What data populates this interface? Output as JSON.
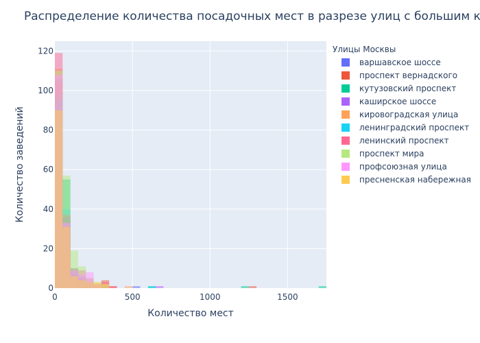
{
  "chart_data": {
    "type": "histogram",
    "title": "Распределение количества посадочных мест в разрезе улиц с большим ко",
    "xlabel": "Количество мест",
    "ylabel": "Количество заведений",
    "xlim": [
      0,
      1750
    ],
    "ylim": [
      0,
      125
    ],
    "x_ticks": [
      0,
      500,
      1000,
      1500
    ],
    "y_ticks": [
      0,
      20,
      40,
      60,
      80,
      100,
      120
    ],
    "bin_width": 50,
    "barmode": "overlay",
    "grid": true,
    "legend_title": "Улицы Москвы",
    "legend_position": "right",
    "series": [
      {
        "name": "варшавское шоссе",
        "color": "#636efa",
        "bins": [
          [
            0,
            106
          ],
          [
            50,
            36
          ],
          [
            100,
            6
          ],
          [
            150,
            5
          ],
          [
            200,
            3
          ],
          [
            250,
            1
          ],
          [
            500,
            1
          ],
          [
            650,
            1
          ]
        ]
      },
      {
        "name": "проспект вернадского",
        "color": "#ef553b",
        "bins": [
          [
            0,
            104
          ],
          [
            50,
            30
          ],
          [
            100,
            7
          ],
          [
            150,
            5
          ],
          [
            200,
            2
          ],
          [
            250,
            2
          ],
          [
            300,
            4
          ],
          [
            350,
            1
          ],
          [
            1250,
            1
          ]
        ]
      },
      {
        "name": "кутузовский проспект",
        "color": "#00cc96",
        "bins": [
          [
            0,
            98
          ],
          [
            50,
            55
          ],
          [
            100,
            10
          ],
          [
            150,
            4
          ],
          [
            200,
            2
          ],
          [
            600,
            1
          ],
          [
            1200,
            1
          ],
          [
            1700,
            1
          ]
        ]
      },
      {
        "name": "каширское шоссе",
        "color": "#ab63fa",
        "bins": [
          [
            0,
            93
          ],
          [
            50,
            33
          ],
          [
            100,
            8
          ],
          [
            150,
            5
          ],
          [
            200,
            2
          ],
          [
            300,
            1
          ]
        ]
      },
      {
        "name": "кировоградская улица",
        "color": "#ffa15a",
        "bins": [
          [
            0,
            111
          ],
          [
            50,
            31
          ],
          [
            100,
            6
          ],
          [
            150,
            4
          ],
          [
            200,
            2
          ],
          [
            250,
            1
          ],
          [
            450,
            1
          ]
        ]
      },
      {
        "name": "ленинградский проспект",
        "color": "#19d3f3",
        "bins": [
          [
            0,
            95
          ],
          [
            50,
            40
          ],
          [
            100,
            9
          ],
          [
            150,
            6
          ],
          [
            200,
            3
          ],
          [
            250,
            1
          ],
          [
            600,
            1
          ]
        ]
      },
      {
        "name": "ленинский проспект",
        "color": "#ff6692",
        "bins": [
          [
            0,
            119
          ],
          [
            50,
            37
          ],
          [
            100,
            10
          ],
          [
            150,
            9
          ],
          [
            200,
            5
          ],
          [
            250,
            2
          ],
          [
            300,
            3
          ],
          [
            350,
            1
          ]
        ]
      },
      {
        "name": "проспект мира",
        "color": "#b6e880",
        "bins": [
          [
            0,
            110
          ],
          [
            50,
            57
          ],
          [
            100,
            19
          ],
          [
            150,
            11
          ],
          [
            200,
            5
          ],
          [
            250,
            3
          ],
          [
            300,
            2
          ]
        ]
      },
      {
        "name": "профсоюзная улица",
        "color": "#ff97ff",
        "bins": [
          [
            0,
            108
          ],
          [
            50,
            33
          ],
          [
            100,
            9
          ],
          [
            150,
            7
          ],
          [
            200,
            8
          ],
          [
            250,
            2
          ],
          [
            650,
            1
          ]
        ]
      },
      {
        "name": "пресненская набережная",
        "color": "#fecb52",
        "bins": [
          [
            0,
            90
          ],
          [
            50,
            31
          ],
          [
            100,
            6
          ],
          [
            150,
            4
          ],
          [
            200,
            3
          ],
          [
            250,
            3
          ],
          [
            300,
            2
          ]
        ]
      }
    ]
  }
}
